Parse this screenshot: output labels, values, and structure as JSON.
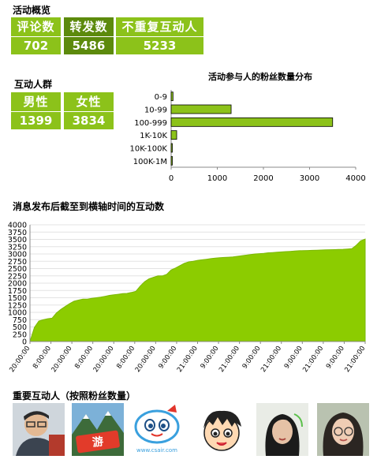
{
  "overview": {
    "title": "活动概览",
    "tiles": [
      {
        "label": "评论数",
        "value": "702"
      },
      {
        "label": "转发数",
        "value": "5486"
      },
      {
        "label": "不重复互动人",
        "value": "5233"
      }
    ]
  },
  "crowd": {
    "title": "互动人群",
    "tiles": [
      {
        "label": "男性",
        "value": "1399"
      },
      {
        "label": "女性",
        "value": "3834"
      }
    ]
  },
  "top_users": {
    "title": "重要互动人（按照粉丝数量）",
    "avatars": [
      {
        "icon": "person-glasses-icon"
      },
      {
        "icon": "travel-logo-icon"
      },
      {
        "icon": "airline-mascot-icon"
      },
      {
        "icon": "cartoon-boy-icon"
      },
      {
        "icon": "woman-portrait-icon"
      },
      {
        "icon": "woman-glasses-icon"
      }
    ],
    "avatar_caption": "www.csair.com"
  },
  "colors": {
    "accent": "#8cc21a",
    "accent_dark": "#5c8a0c",
    "area": "#8ccc00"
  },
  "chart_data": [
    {
      "type": "bar",
      "orientation": "horizontal",
      "title": "活动参与人的粉丝数量分布",
      "categories": [
        "0-9",
        "10-99",
        "100-999",
        "1K-10K",
        "10K-100K",
        "100K-1M"
      ],
      "values": [
        40,
        1300,
        3500,
        120,
        25,
        10
      ],
      "xlim": [
        0,
        4000
      ],
      "xticks": [
        "0",
        "1000",
        "2000",
        "3000",
        "4000"
      ],
      "grid": false,
      "legend": "none"
    },
    {
      "type": "area",
      "title": "消息发布后截至到横轴时间的互动数",
      "ylim": [
        0,
        4000
      ],
      "yticks": [
        "0",
        "250",
        "500",
        "750",
        "1000",
        "1250",
        "1500",
        "1750",
        "2000",
        "2250",
        "2500",
        "2750",
        "3000",
        "3250",
        "3500",
        "3750",
        "4000"
      ],
      "xticks": [
        "20:00:00",
        "8:00:00",
        "20:00:00",
        "8:00:00",
        "20:00:00",
        "8:00:00",
        "20:00:00",
        "9:00:00",
        "21:00:00",
        "9:00:00",
        "21:00:00",
        "9:00:00",
        "21:00:00",
        "9:00:00",
        "21:00:00",
        "9:00:00",
        "21:00:00"
      ],
      "values": [
        0,
        480,
        700,
        750,
        780,
        800,
        980,
        1100,
        1200,
        1300,
        1380,
        1420,
        1450,
        1450,
        1480,
        1500,
        1520,
        1550,
        1580,
        1600,
        1620,
        1640,
        1650,
        1680,
        1720,
        1900,
        2050,
        2150,
        2200,
        2250,
        2250,
        2300,
        2450,
        2520,
        2600,
        2680,
        2730,
        2750,
        2780,
        2800,
        2820,
        2840,
        2860,
        2870,
        2880,
        2890,
        2900,
        2920,
        2940,
        2960,
        2980,
        3000,
        3010,
        3020,
        3040,
        3050,
        3060,
        3070,
        3080,
        3090,
        3100,
        3110,
        3115,
        3120,
        3125,
        3130,
        3135,
        3140,
        3145,
        3150,
        3155,
        3160,
        3170,
        3180,
        3300,
        3450,
        3510
      ],
      "grid": true,
      "legend": "none"
    }
  ]
}
